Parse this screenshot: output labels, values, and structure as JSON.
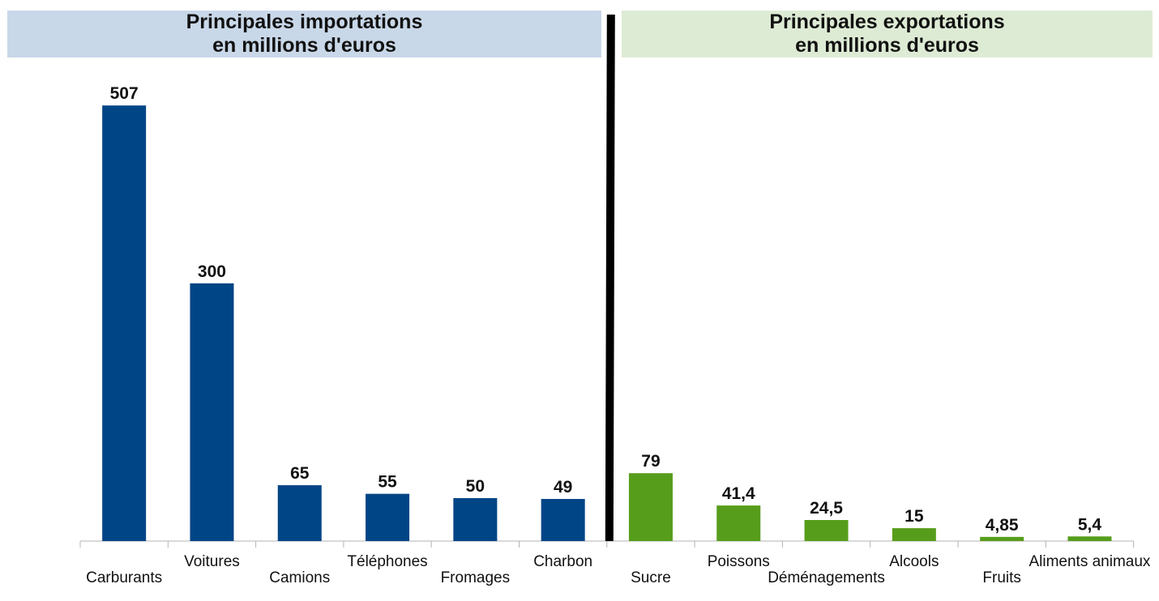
{
  "chart_data": [
    {
      "type": "bar",
      "title_line1": "Principales importations",
      "title_line2": "en millions d'euros",
      "categories": [
        "Carburants",
        "Voitures",
        "Camions",
        "Téléphones",
        "Fromages",
        "Charbon"
      ],
      "values": [
        507,
        300,
        65,
        55,
        50,
        49
      ],
      "value_labels": [
        "507",
        "300",
        "65",
        "55",
        "50",
        "49"
      ],
      "color": "#004586",
      "title_background": "#c9d8e8"
    },
    {
      "type": "bar",
      "title_line1": "Principales exportations",
      "title_line2": "en millions d'euros",
      "categories": [
        "Sucre",
        "Poissons",
        "Déménagements",
        "Alcools",
        "Fruits",
        "Aliments animaux"
      ],
      "values": [
        79,
        41.4,
        24.5,
        15,
        4.85,
        5.4
      ],
      "value_labels": [
        "79",
        "41,4",
        "24,5",
        "15",
        "4,85",
        "5,4"
      ],
      "color": "#579d1c",
      "title_background": "#ddebd4"
    }
  ],
  "divider_color": "#000000"
}
